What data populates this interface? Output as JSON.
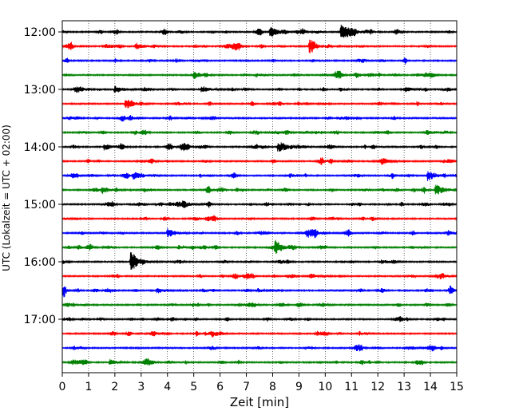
{
  "chart_data": {
    "type": "line",
    "subtype": "helicorder-seismogram",
    "xlabel": "Zeit  [min]",
    "ylabel": "UTC (Lokalzeit = UTC + 02:00)",
    "xlim": [
      0,
      15
    ],
    "x_ticks": [
      0,
      1,
      2,
      3,
      4,
      5,
      6,
      7,
      8,
      9,
      10,
      11,
      12,
      13,
      14,
      15
    ],
    "y_tick_labels": [
      "12:00",
      "13:00",
      "14:00",
      "15:00",
      "16:00",
      "17:00"
    ],
    "trace_start_time": "12:00",
    "trace_interval_min": 15,
    "trace_count": 24,
    "trace_colors": [
      "#000000",
      "#ff0000",
      "#0000ff",
      "#008000"
    ],
    "grid": "vertical dotted",
    "events": [
      {
        "trace": 0,
        "x": 10.6,
        "amp": 1.0
      },
      {
        "trace": 0,
        "x": 7.9,
        "amp": 0.5
      },
      {
        "trace": 1,
        "x": 9.4,
        "amp": 0.6
      },
      {
        "trace": 1,
        "x": 2.8,
        "amp": 0.3
      },
      {
        "trace": 3,
        "x": 5.0,
        "amp": 0.35
      },
      {
        "trace": 4,
        "x": 2.0,
        "amp": 0.35
      },
      {
        "trace": 4,
        "x": 5.3,
        "amp": 0.3
      },
      {
        "trace": 5,
        "x": 2.4,
        "amp": 0.35
      },
      {
        "trace": 8,
        "x": 8.2,
        "amp": 0.35
      },
      {
        "trace": 8,
        "x": 1.6,
        "amp": 0.3
      },
      {
        "trace": 10,
        "x": 2.7,
        "amp": 0.35
      },
      {
        "trace": 10,
        "x": 13.9,
        "amp": 0.55
      },
      {
        "trace": 11,
        "x": 1.5,
        "amp": 0.35
      },
      {
        "trace": 11,
        "x": 14.2,
        "amp": 0.6
      },
      {
        "trace": 12,
        "x": 4.6,
        "amp": 0.3
      },
      {
        "trace": 14,
        "x": 4.0,
        "amp": 0.4
      },
      {
        "trace": 14,
        "x": 9.3,
        "amp": 0.4
      },
      {
        "trace": 15,
        "x": 8.1,
        "amp": 0.65
      },
      {
        "trace": 16,
        "x": 2.6,
        "amp": 0.9
      },
      {
        "trace": 17,
        "x": 14.4,
        "amp": 0.25
      },
      {
        "trace": 18,
        "x": 3.6,
        "amp": 0.25
      },
      {
        "trace": 23,
        "x": 1.8,
        "amp": 0.25
      }
    ]
  }
}
